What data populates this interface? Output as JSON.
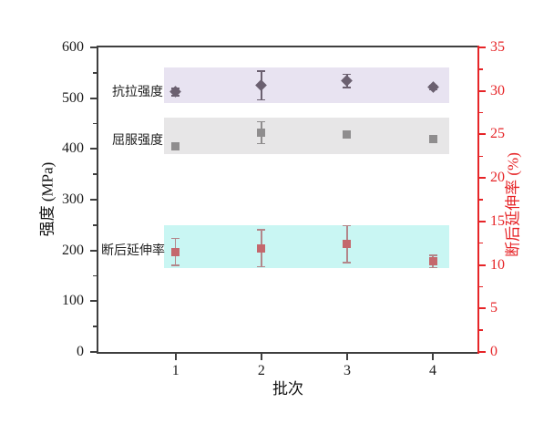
{
  "chart_data": {
    "type": "scatter",
    "title": "",
    "xlabel": "批次",
    "ylabel_left": "强度 (MPa)",
    "ylabel_right": "断后延伸率 (%)",
    "xlim": [
      0.1,
      4.52
    ],
    "ylim_left": [
      0,
      600
    ],
    "ylim_right": [
      0,
      35
    ],
    "x_ticks": [
      1,
      2,
      3,
      4
    ],
    "y_ticks_left": [
      0,
      100,
      200,
      300,
      400,
      500,
      600
    ],
    "y_minor_step_left": 50,
    "y_ticks_right": [
      0,
      5,
      10,
      15,
      20,
      25,
      30,
      35
    ],
    "y_minor_step_right": 2.5,
    "grid": false,
    "legend_position": "labels-inside-plot-left",
    "colors": {
      "axis_dark": "#3f3f3f",
      "axis_red": "#e62528",
      "tensile_marker": "#6b6070",
      "yield_marker": "#8f8d8e",
      "elongation_marker": "#c4686d",
      "elongation_error": "#b3868a",
      "tensile_band": "#e8e3f1",
      "yield_band": "#e7e6e7",
      "elongation_band": "#c9f6f3"
    },
    "series": [
      {
        "name": "抗拉强度",
        "axis": "left",
        "marker": "diamond",
        "marker_size": 9,
        "color": "#6b6070",
        "error_color": "#6b6070",
        "x": [
          1,
          2,
          3,
          4
        ],
        "y": [
          512,
          525,
          534,
          521
        ],
        "yerr": [
          7,
          28,
          13,
          4
        ],
        "band": {
          "x_min": 0.87,
          "x_max": 4.19,
          "y_min": 490,
          "y_max": 561,
          "color": "#e8e3f1"
        }
      },
      {
        "name": "屈服强度",
        "axis": "left",
        "marker": "square",
        "marker_size": 9,
        "color": "#8f8d8e",
        "error_color": "#8f8d8e",
        "x": [
          1,
          2,
          3,
          4
        ],
        "y": [
          405,
          432,
          428,
          419
        ],
        "yerr": [
          0,
          21,
          0,
          0
        ],
        "band": {
          "x_min": 0.87,
          "x_max": 4.19,
          "y_min": 390,
          "y_max": 461,
          "color": "#e7e6e7"
        }
      },
      {
        "name": "断后延伸率",
        "axis": "right",
        "marker": "square",
        "marker_size": 9,
        "color": "#c4686d",
        "error_color": "#b3868a",
        "x": [
          1,
          2,
          3,
          4
        ],
        "y": [
          11.5,
          11.9,
          12.4,
          10.4
        ],
        "yerr": [
          1.5,
          2.1,
          2.1,
          0.7
        ],
        "band": {
          "x_min": 0.87,
          "x_max": 4.19,
          "y_min": 9.6,
          "y_max": 14.6,
          "color": "#c9f6f3"
        }
      }
    ]
  }
}
